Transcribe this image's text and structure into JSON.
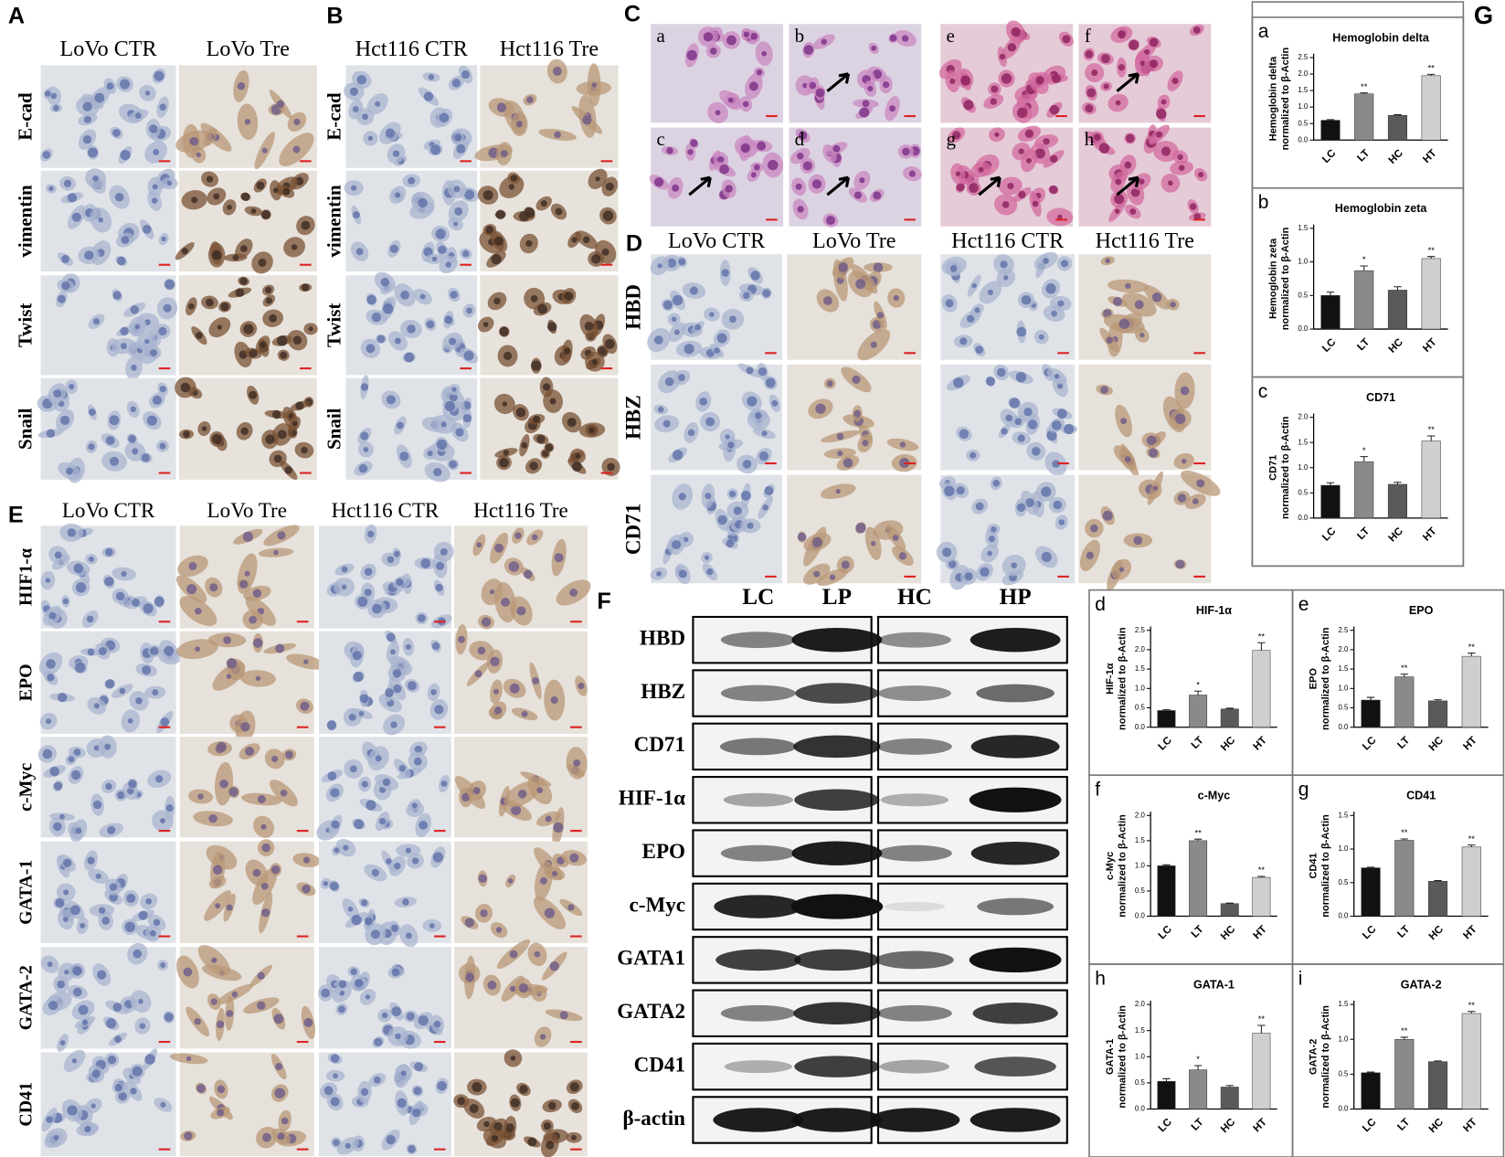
{
  "panels": {
    "A": {
      "label": "A",
      "columns": [
        "LoVo CTR",
        "LoVo Tre"
      ],
      "rows": [
        "E-cad",
        "vimentin",
        "Twist",
        "Snail"
      ]
    },
    "B": {
      "label": "B",
      "columns": [
        "Hct116 CTR",
        "Hct116 Tre"
      ],
      "rows": [
        "E-cad",
        "vimentin",
        "Twist",
        "Snail"
      ]
    },
    "C": {
      "label": "C",
      "images": [
        "a",
        "b",
        "c",
        "d",
        "e",
        "f",
        "g",
        "h"
      ]
    },
    "D": {
      "label": "D",
      "columns": [
        "LoVo CTR",
        "LoVo Tre",
        "Hct116 CTR",
        "Hct116 Tre"
      ],
      "rows": [
        "HBD",
        "HBZ",
        "CD71"
      ]
    },
    "E": {
      "label": "E",
      "columns": [
        "LoVo CTR",
        "LoVo Tre",
        "Hct116 CTR",
        "Hct116 Tre"
      ],
      "rows": [
        "HIF1-α",
        "EPO",
        "c-Myc",
        "GATA-1",
        "GATA-2",
        "CD41"
      ]
    },
    "F": {
      "label": "F",
      "columns": [
        "LC",
        "LP",
        "HC",
        "HP"
      ],
      "rows": [
        "HBD",
        "HBZ",
        "CD71",
        "HIF-1α",
        "EPO",
        "c-Myc",
        "GATA1",
        "GATA2",
        "CD41",
        "β-actin"
      ]
    },
    "G": {
      "label": "G"
    }
  },
  "chart_data": [
    {
      "type": "bar",
      "panel": "a",
      "title": "Hemoglobin delta",
      "ylabel": [
        "Hemoglobin delta",
        "normalized to β-Actin"
      ],
      "categories": [
        "LC",
        "LT",
        "HC",
        "HT"
      ],
      "values": [
        0.6,
        1.4,
        0.75,
        1.95
      ],
      "errors": [
        0.02,
        0.03,
        0.02,
        0.04
      ],
      "annotations": [
        null,
        "**",
        null,
        "**"
      ],
      "colors": [
        "#111111",
        "#8a8a8a",
        "#5a5a5a",
        "#cfcfcf"
      ],
      "ylim": [
        0,
        2.5
      ],
      "yticks": [
        {
          "value": 0,
          "label": "0.0"
        },
        0.5,
        {
          "value": 1,
          "label": "1.0"
        },
        1.5,
        {
          "value": 2,
          "label": "2.0"
        },
        2.5
      ]
    },
    {
      "type": "bar",
      "panel": "b",
      "title": "Hemoglobin zeta",
      "ylabel": [
        "Hemoglobin zeta",
        "normalized to β-Actin"
      ],
      "categories": [
        "LC",
        "LT",
        "HC",
        "HT"
      ],
      "values": [
        0.5,
        0.87,
        0.58,
        1.05
      ],
      "errors": [
        0.05,
        0.07,
        0.05,
        0.03
      ],
      "annotations": [
        null,
        "*",
        null,
        "**"
      ],
      "colors": [
        "#111111",
        "#8a8a8a",
        "#5a5a5a",
        "#cfcfcf"
      ],
      "ylim": [
        0,
        1.5
      ],
      "yticks": [
        {
          "value": 0,
          "label": "0.0"
        },
        0.5,
        {
          "value": 1,
          "label": "1.0"
        },
        1.5
      ]
    },
    {
      "type": "bar",
      "panel": "c",
      "title": "CD71",
      "ylabel": [
        "CD71",
        "normalized to β-Actin"
      ],
      "categories": [
        "LC",
        "LT",
        "HC",
        "HT"
      ],
      "values": [
        0.65,
        1.12,
        0.67,
        1.53
      ],
      "errors": [
        0.05,
        0.1,
        0.04,
        0.1
      ],
      "annotations": [
        null,
        "*",
        null,
        "**"
      ],
      "colors": [
        "#111111",
        "#8a8a8a",
        "#5a5a5a",
        "#cfcfcf"
      ],
      "ylim": [
        0,
        2
      ],
      "yticks": [
        {
          "value": 0,
          "label": "0.0"
        },
        0.5,
        {
          "value": 1,
          "label": "1.0"
        },
        1.5,
        {
          "value": 2,
          "label": "2.0"
        }
      ]
    },
    {
      "type": "bar",
      "panel": "d",
      "title": "HIF-1α",
      "ylabel": [
        "HIF-1α",
        "normalized to β-Actin"
      ],
      "categories": [
        "LC",
        "LT",
        "HC",
        "HT"
      ],
      "values": [
        0.43,
        0.83,
        0.47,
        1.98
      ],
      "errors": [
        0.02,
        0.1,
        0.02,
        0.2
      ],
      "annotations": [
        null,
        "*",
        null,
        "**"
      ],
      "colors": [
        "#111111",
        "#8a8a8a",
        "#5a5a5a",
        "#cfcfcf"
      ],
      "ylim": [
        0,
        2.5
      ],
      "yticks": [
        {
          "value": 0,
          "label": "0.0"
        },
        0.5,
        {
          "value": 1,
          "label": "1.0"
        },
        1.5,
        {
          "value": 2,
          "label": "2.0"
        },
        2.5
      ]
    },
    {
      "type": "bar",
      "panel": "e",
      "title": "EPO",
      "ylabel": [
        "EPO",
        "normalized to β-Actin"
      ],
      "categories": [
        "LC",
        "LT",
        "HC",
        "HT"
      ],
      "values": [
        0.7,
        1.3,
        0.68,
        1.83
      ],
      "errors": [
        0.07,
        0.07,
        0.03,
        0.08
      ],
      "annotations": [
        null,
        "**",
        null,
        "**"
      ],
      "colors": [
        "#111111",
        "#8a8a8a",
        "#5a5a5a",
        "#cfcfcf"
      ],
      "ylim": [
        0,
        2.5
      ],
      "yticks": [
        {
          "value": 0,
          "label": "0.0"
        },
        0.5,
        {
          "value": 1,
          "label": "1.0"
        },
        1.5,
        {
          "value": 2,
          "label": "2.0"
        },
        2.5
      ]
    },
    {
      "type": "bar",
      "panel": "f",
      "title": "c-Myc",
      "ylabel": [
        "c-Myc",
        "normalized to β-Actin"
      ],
      "categories": [
        "LC",
        "LT",
        "HC",
        "HT"
      ],
      "values": [
        1.0,
        1.5,
        0.25,
        0.77
      ],
      "errors": [
        0.02,
        0.03,
        0.01,
        0.02
      ],
      "annotations": [
        null,
        "**",
        null,
        "**"
      ],
      "colors": [
        "#111111",
        "#8a8a8a",
        "#5a5a5a",
        "#cfcfcf"
      ],
      "ylim": [
        0,
        2
      ],
      "yticks": [
        {
          "value": 0,
          "label": "0.0"
        },
        0.5,
        {
          "value": 1,
          "label": "1.0"
        },
        1.5,
        {
          "value": 2,
          "label": "2.0"
        }
      ]
    },
    {
      "type": "bar",
      "panel": "g",
      "title": "CD41",
      "ylabel": [
        "CD41",
        "normalized to β-Actin"
      ],
      "categories": [
        "LC",
        "LT",
        "HC",
        "HT"
      ],
      "values": [
        0.72,
        1.13,
        0.52,
        1.03
      ],
      "errors": [
        0.01,
        0.02,
        0.01,
        0.03
      ],
      "annotations": [
        null,
        "**",
        null,
        "**"
      ],
      "colors": [
        "#111111",
        "#8a8a8a",
        "#5a5a5a",
        "#cfcfcf"
      ],
      "ylim": [
        0,
        1.5
      ],
      "yticks": [
        {
          "value": 0,
          "label": "0.0"
        },
        0.5,
        {
          "value": 1,
          "label": "1.0"
        },
        1.5
      ]
    },
    {
      "type": "bar",
      "panel": "h",
      "title": "GATA-1",
      "ylabel": [
        "GATA-1",
        "normalized to β-Actin"
      ],
      "categories": [
        "LC",
        "LT",
        "HC",
        "HT"
      ],
      "values": [
        0.53,
        0.75,
        0.42,
        1.45
      ],
      "errors": [
        0.05,
        0.08,
        0.03,
        0.15
      ],
      "annotations": [
        null,
        "*",
        null,
        "**"
      ],
      "colors": [
        "#111111",
        "#8a8a8a",
        "#5a5a5a",
        "#cfcfcf"
      ],
      "ylim": [
        0,
        2
      ],
      "yticks": [
        {
          "value": 0,
          "label": "0.0"
        },
        0.5,
        {
          "value": 1,
          "label": "1.0"
        },
        1.5,
        {
          "value": 2,
          "label": "2.0"
        }
      ]
    },
    {
      "type": "bar",
      "panel": "i",
      "title": "GATA-2",
      "ylabel": [
        "GATA-2",
        "normalized to β-Actin"
      ],
      "categories": [
        "LC",
        "LT",
        "HC",
        "HT"
      ],
      "values": [
        0.52,
        1.0,
        0.68,
        1.37
      ],
      "errors": [
        0.01,
        0.03,
        0.01,
        0.03
      ],
      "annotations": [
        null,
        "**",
        null,
        "**"
      ],
      "colors": [
        "#111111",
        "#8a8a8a",
        "#5a5a5a",
        "#cfcfcf"
      ],
      "ylim": [
        0,
        1.5
      ],
      "yticks": [
        {
          "value": 0,
          "label": "0.0"
        },
        0.5,
        {
          "value": 1,
          "label": "1.0"
        },
        1.5
      ]
    }
  ]
}
